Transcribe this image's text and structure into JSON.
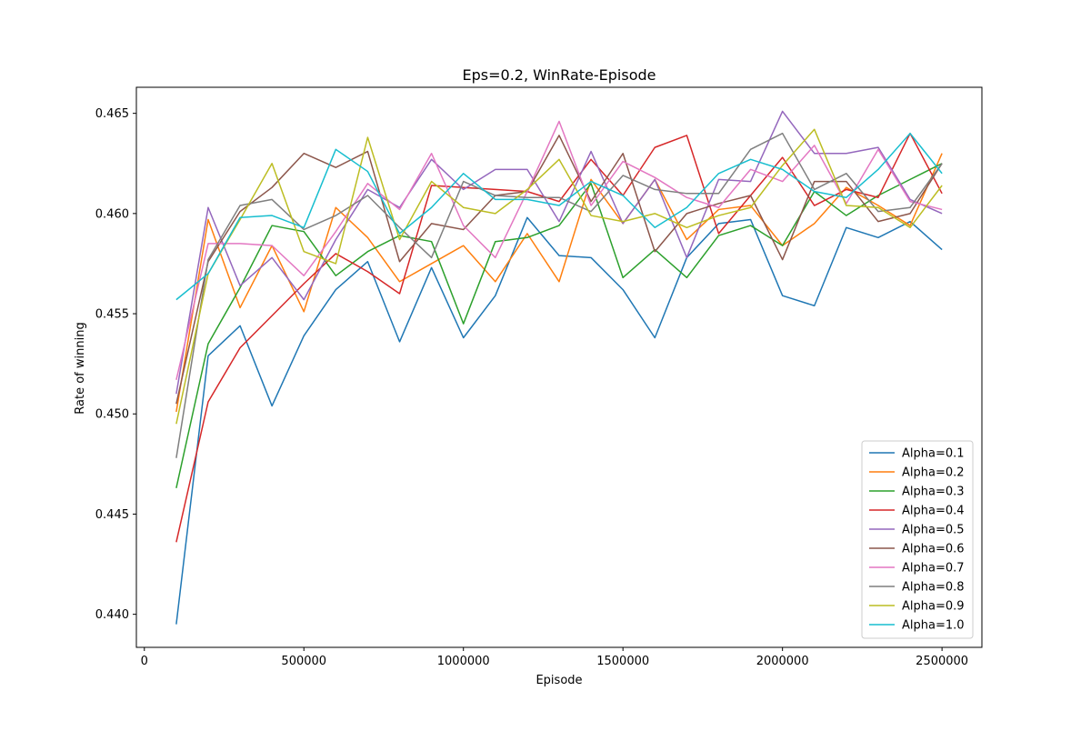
{
  "chart_data": {
    "type": "line",
    "title": "Eps=0.2, WinRate-Episode",
    "xlabel": "Episode",
    "ylabel": "Rate of winning",
    "xlim": [
      -25000,
      2625000
    ],
    "ylim": [
      0.43835,
      0.4663
    ],
    "x_ticks": [
      0,
      500000,
      1000000,
      1500000,
      2000000,
      2500000
    ],
    "y_ticks": [
      0.44,
      0.445,
      0.45,
      0.455,
      0.46,
      0.465
    ],
    "x_tick_labels": [
      "0",
      "500000",
      "1000000",
      "1500000",
      "2000000",
      "2500000"
    ],
    "y_tick_labels": [
      "0.440",
      "0.445",
      "0.450",
      "0.455",
      "0.460",
      "0.465"
    ],
    "grid": false,
    "legend_position": "lower-right",
    "x": [
      100000,
      200000,
      300000,
      400000,
      500000,
      600000,
      700000,
      800000,
      900000,
      1000000,
      1100000,
      1200000,
      1300000,
      1400000,
      1500000,
      1600000,
      1700000,
      1800000,
      1900000,
      2000000,
      2100000,
      2200000,
      2300000,
      2400000,
      2500000
    ],
    "series": [
      {
        "name": "Alpha=0.1",
        "color": "#1f77b4",
        "values": [
          0.4395,
          0.4529,
          0.4544,
          0.4504,
          0.4539,
          0.4562,
          0.4576,
          0.4536,
          0.4573,
          0.4538,
          0.4559,
          0.4598,
          0.4579,
          0.4578,
          0.4562,
          0.4538,
          0.4578,
          0.4595,
          0.4597,
          0.4559,
          0.4554,
          0.4593,
          0.4588,
          0.4596,
          0.4582
        ]
      },
      {
        "name": "Alpha=0.2",
        "color": "#ff7f0e",
        "values": [
          0.4501,
          0.4597,
          0.4553,
          0.4584,
          0.4551,
          0.4603,
          0.4588,
          0.4566,
          0.4575,
          0.4584,
          0.4566,
          0.459,
          0.4566,
          0.4617,
          0.4595,
          0.4617,
          0.4587,
          0.4602,
          0.4604,
          0.4584,
          0.4595,
          0.4613,
          0.4604,
          0.4594,
          0.463
        ]
      },
      {
        "name": "Alpha=0.3",
        "color": "#2ca02c",
        "values": [
          0.4463,
          0.4535,
          0.4563,
          0.4594,
          0.4591,
          0.4569,
          0.4581,
          0.4589,
          0.4586,
          0.4545,
          0.4586,
          0.4588,
          0.4594,
          0.4615,
          0.4568,
          0.4582,
          0.4568,
          0.4589,
          0.4594,
          0.4584,
          0.4611,
          0.4599,
          0.4609,
          0.4617,
          0.4625
        ]
      },
      {
        "name": "Alpha=0.4",
        "color": "#d62728",
        "values": [
          0.4436,
          0.4506,
          0.4533,
          0.4549,
          0.4565,
          0.458,
          0.4571,
          0.456,
          0.4614,
          0.4613,
          0.4612,
          0.4611,
          0.4606,
          0.4627,
          0.4609,
          0.4633,
          0.4639,
          0.459,
          0.4609,
          0.4628,
          0.4604,
          0.4612,
          0.4608,
          0.464,
          0.461
        ]
      },
      {
        "name": "Alpha=0.5",
        "color": "#9467bd",
        "values": [
          0.451,
          0.4603,
          0.4564,
          0.4578,
          0.4557,
          0.4587,
          0.4612,
          0.4603,
          0.4627,
          0.4612,
          0.4622,
          0.4622,
          0.4596,
          0.4631,
          0.4595,
          0.4617,
          0.4578,
          0.4617,
          0.4616,
          0.4651,
          0.463,
          0.463,
          0.4633,
          0.4607,
          0.46
        ]
      },
      {
        "name": "Alpha=0.6",
        "color": "#8c564b",
        "values": [
          0.4505,
          0.4576,
          0.4601,
          0.4613,
          0.463,
          0.4623,
          0.4631,
          0.4576,
          0.4595,
          0.4592,
          0.4609,
          0.4611,
          0.4639,
          0.4606,
          0.463,
          0.4581,
          0.46,
          0.4605,
          0.4609,
          0.4577,
          0.4616,
          0.4616,
          0.4596,
          0.46,
          0.4625
        ]
      },
      {
        "name": "Alpha=0.7",
        "color": "#e377c2",
        "values": [
          0.4517,
          0.4585,
          0.4585,
          0.4584,
          0.4569,
          0.4591,
          0.4615,
          0.4602,
          0.463,
          0.4594,
          0.4578,
          0.4611,
          0.4646,
          0.4604,
          0.4626,
          0.4618,
          0.4608,
          0.4603,
          0.4622,
          0.4616,
          0.4634,
          0.4605,
          0.4632,
          0.4606,
          0.4602
        ]
      },
      {
        "name": "Alpha=0.8",
        "color": "#7f7f7f",
        "values": [
          0.4478,
          0.4577,
          0.4604,
          0.4607,
          0.4592,
          0.4599,
          0.4609,
          0.4593,
          0.4578,
          0.4616,
          0.4609,
          0.4608,
          0.4608,
          0.4601,
          0.4619,
          0.4612,
          0.461,
          0.461,
          0.4632,
          0.464,
          0.4612,
          0.462,
          0.4601,
          0.4603,
          0.4625
        ]
      },
      {
        "name": "Alpha=0.9",
        "color": "#bcbd22",
        "values": [
          0.4495,
          0.457,
          0.4597,
          0.4625,
          0.4581,
          0.4575,
          0.4638,
          0.4587,
          0.4616,
          0.4603,
          0.46,
          0.4612,
          0.4627,
          0.4599,
          0.4596,
          0.46,
          0.4593,
          0.4599,
          0.4603,
          0.4624,
          0.4642,
          0.4604,
          0.4603,
          0.4593,
          0.4614
        ]
      },
      {
        "name": "Alpha=1.0",
        "color": "#17becf",
        "values": [
          0.4557,
          0.457,
          0.4598,
          0.4599,
          0.4593,
          0.4632,
          0.4621,
          0.459,
          0.4603,
          0.462,
          0.4607,
          0.4607,
          0.4604,
          0.4616,
          0.4609,
          0.4593,
          0.4603,
          0.462,
          0.4627,
          0.4622,
          0.4611,
          0.4608,
          0.4622,
          0.464,
          0.462
        ]
      }
    ]
  }
}
